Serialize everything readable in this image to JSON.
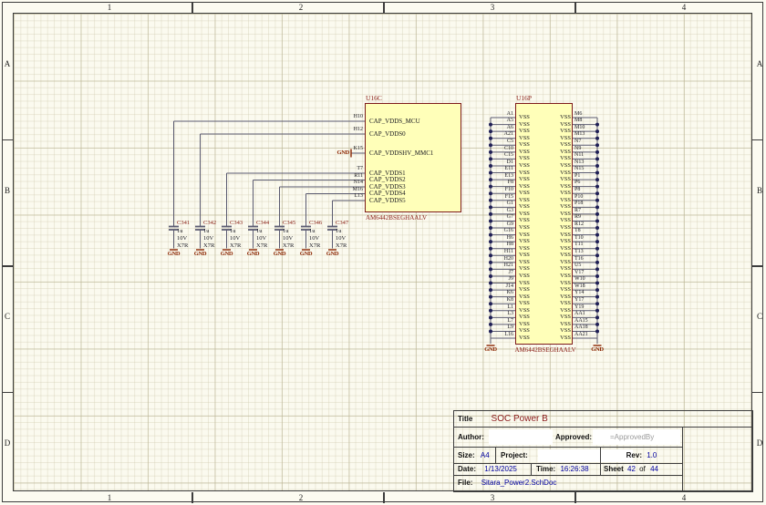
{
  "sheet": {
    "grid_columns": [
      "1",
      "2",
      "3",
      "4"
    ],
    "grid_rows": [
      "A",
      "B",
      "C",
      "D"
    ]
  },
  "colors": {
    "component_fill": "#FFFFB9",
    "component_border": "#7D1B1B",
    "designator_red": "#8B2018",
    "wire": "#5B5B71",
    "junction_dot": "#1E1E55",
    "pin_text": "#17171F",
    "value_blue": "#0000A0",
    "gray_text": "#9B9B9B",
    "power_port_red": "#8B2500"
  },
  "u16c": {
    "designator": "U16C",
    "part_number": "AM6442BSEGHAALV",
    "gnd_label": "GND",
    "pins": [
      {
        "number": "H10",
        "name": "CAP_VDDS_MCU"
      },
      {
        "number": "H12",
        "name": "CAP_VDDS0"
      },
      {
        "number": "K15",
        "name": "CAP_VDDSHV_MMC1"
      },
      {
        "number": "T7",
        "name": "CAP_VDDS1"
      },
      {
        "number": "R11",
        "name": "CAP_VDDS2"
      },
      {
        "number": "N14",
        "name": "CAP_VDDS3"
      },
      {
        "number": "M16",
        "name": "CAP_VDDS4"
      },
      {
        "number": "L13",
        "name": "CAP_VDDS5"
      }
    ]
  },
  "u16p": {
    "designator": "U16P",
    "part_number": "AM6442BSEGHAALV",
    "pin_name": "VSS",
    "gnd_label": "GND",
    "left_pins": [
      "A1",
      "A5",
      "A6",
      "A21",
      "C5",
      "C10",
      "C15",
      "D1",
      "E11",
      "E13",
      "F8",
      "F10",
      "F15",
      "G1",
      "G3",
      "G7",
      "G9",
      "G16",
      "H6",
      "H8",
      "H11",
      "H20",
      "H21",
      "J7",
      "J9",
      "J14",
      "K6",
      "K8",
      "L1",
      "L3",
      "L7",
      "L9",
      "L16"
    ],
    "right_pins": [
      "M6",
      "M8",
      "M10",
      "M13",
      "N7",
      "N9",
      "N11",
      "N13",
      "N15",
      "P1",
      "P6",
      "P8",
      "P10",
      "P18",
      "R7",
      "R9",
      "R12",
      "T8",
      "T10",
      "T11",
      "T13",
      "T16",
      "U5",
      "V17",
      "W10",
      "W18",
      "Y14",
      "Y17",
      "Y19",
      "AA1",
      "AA15",
      "AA18",
      "AA21"
    ]
  },
  "capacitors": {
    "gnd_label": "GND",
    "items": [
      {
        "designator": "C341",
        "value": "1u",
        "voltage": "10V",
        "dielectric": "X7R"
      },
      {
        "designator": "C342",
        "value": "1u",
        "voltage": "10V",
        "dielectric": "X7R"
      },
      {
        "designator": "C343",
        "value": "1u",
        "voltage": "10V",
        "dielectric": "X7R"
      },
      {
        "designator": "C344",
        "value": "1u",
        "voltage": "10V",
        "dielectric": "X7R"
      },
      {
        "designator": "C345",
        "value": "1u",
        "voltage": "10V",
        "dielectric": "X7R"
      },
      {
        "designator": "C346",
        "value": "1u",
        "voltage": "10V",
        "dielectric": "X7R"
      },
      {
        "designator": "C347",
        "value": "1u",
        "voltage": "10V",
        "dielectric": "X7R"
      }
    ]
  },
  "title_block": {
    "title_label": "Title",
    "title": "SOC Power B",
    "author_label": "Author:",
    "author": "",
    "approved_label": "Approved:",
    "approved": "=ApprovedBy",
    "size_label": "Size:",
    "size": "A4",
    "project_label": "Project:",
    "project": "",
    "rev_label": "Rev:",
    "rev": "1.0",
    "date_label": "Date:",
    "date": "1/13/2025",
    "time_label": "Time:",
    "time": "16:26:38",
    "sheet_label": "Sheet",
    "sheet_number": "42",
    "of_label": "of",
    "sheet_total": "44",
    "file_label": "File:",
    "file": "Sitara_Power2.SchDoc"
  }
}
